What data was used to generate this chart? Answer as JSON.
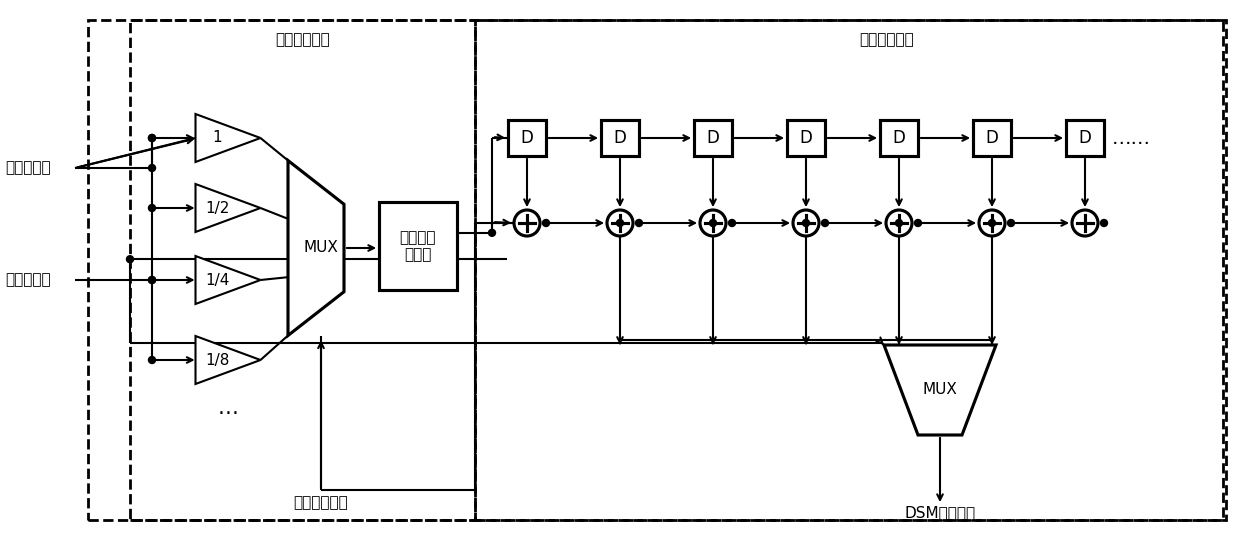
{
  "bg": "#ffffff",
  "lc": "#000000",
  "lw": 1.5,
  "fs": 11,
  "label_zhengsu": "整数分频比",
  "label_xiaoshu": "小数分频比",
  "label_dangan": "档位选择信号",
  "label_dsm": "DSM输出信号",
  "label_left_module": "档位选择模块",
  "label_right_module": "陷波滤波模块",
  "label_modulator": "多级级联\n调制器",
  "amp_labels": [
    "1",
    "1/2",
    "1/4",
    "1/8"
  ],
  "n_delay": 7,
  "mux_label": "MUX",
  "dots_label": "……"
}
